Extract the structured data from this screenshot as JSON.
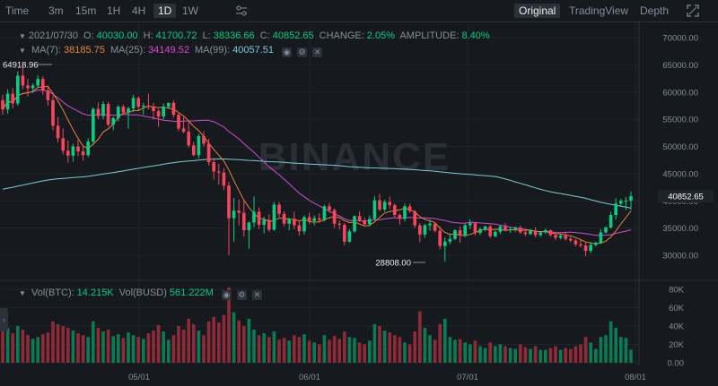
{
  "toolbar": {
    "intervals": [
      {
        "label": "Time",
        "active": false
      },
      {
        "label": "3m",
        "active": false
      },
      {
        "label": "15m",
        "active": false
      },
      {
        "label": "1H",
        "active": false
      },
      {
        "label": "4H",
        "active": false
      },
      {
        "label": "1D",
        "active": true
      },
      {
        "label": "1W",
        "active": false
      }
    ],
    "indicator_icon": "sliders-icon",
    "views": [
      {
        "label": "Original",
        "active": true
      },
      {
        "label": "TradingView",
        "active": false
      },
      {
        "label": "Depth",
        "active": false
      }
    ],
    "fullscreen_icon": "expand-icon"
  },
  "ohlc": {
    "date": "2021/07/30",
    "o_label": "O:",
    "o": "40030.00",
    "h_label": "H:",
    "h": "41700.72",
    "l_label": "L:",
    "l": "38336.66",
    "c_label": "C:",
    "c": "40852.65",
    "change_label": "CHANGE:",
    "change": "2.05%",
    "amplitude_label": "AMPLITUDE:",
    "amplitude": "8.40%"
  },
  "ma": {
    "ma7_label": "MA(7):",
    "ma7": "38185.75",
    "ma25_label": "MA(25):",
    "ma25": "34149.52",
    "ma99_label": "MA(99):",
    "ma99": "40057.51"
  },
  "volume": {
    "btc_label": "Vol(BTC):",
    "btc": "14.215K",
    "busd_label": "Vol(BUSD)",
    "busd": "561.222M"
  },
  "watermark": "BINANCE",
  "annotations": {
    "high": "64918.96",
    "low": "28808.00"
  },
  "last_price": "40852.65",
  "price_axis": [
    "70000.00",
    "65000.00",
    "60000.00",
    "55000.00",
    "50000.00",
    "45000.00",
    "40000.00",
    "35000.00",
    "30000.00"
  ],
  "volume_axis": [
    "80K",
    "60K",
    "40K",
    "20K",
    "0.00"
  ],
  "time_axis": [
    "05/01",
    "06/01",
    "07/01",
    "08/01"
  ],
  "colors": {
    "up": "#0ecb81",
    "down": "#f6465d",
    "ma7": "#f0b90b",
    "ma25": "#d14cd1",
    "ma99": "#7ecad6",
    "bg": "#161a1e",
    "grid": "#1f242a"
  },
  "chart_data": {
    "type": "candlestick",
    "price_range": [
      27000,
      72000
    ],
    "volume_range": [
      0,
      85000
    ],
    "candles": [
      [
        58500,
        59500,
        55800,
        56800,
        35000
      ],
      [
        56800,
        60500,
        56000,
        59700,
        38000
      ],
      [
        59700,
        60700,
        57000,
        57900,
        32000
      ],
      [
        57900,
        63800,
        57500,
        63000,
        40000
      ],
      [
        63000,
        64919,
        60500,
        61200,
        36000
      ],
      [
        61200,
        62400,
        59200,
        60700,
        30000
      ],
      [
        60700,
        61600,
        59800,
        61200,
        26000
      ],
      [
        61200,
        63100,
        60700,
        62400,
        28000
      ],
      [
        62400,
        62900,
        59500,
        60300,
        31000
      ],
      [
        60300,
        61200,
        57500,
        58500,
        33000
      ],
      [
        58500,
        59400,
        53000,
        53800,
        45000
      ],
      [
        53800,
        55400,
        50700,
        51500,
        42000
      ],
      [
        51500,
        53300,
        48500,
        49200,
        40000
      ],
      [
        49200,
        51100,
        47000,
        48300,
        38000
      ],
      [
        48300,
        50500,
        47200,
        50000,
        35000
      ],
      [
        50000,
        51200,
        48200,
        49100,
        32000
      ],
      [
        49100,
        49900,
        47400,
        48400,
        30000
      ],
      [
        48400,
        51500,
        48000,
        50900,
        28000
      ],
      [
        50900,
        57200,
        50300,
        56900,
        45000
      ],
      [
        56900,
        58100,
        55000,
        55600,
        38000
      ],
      [
        55600,
        58300,
        55000,
        57800,
        34000
      ],
      [
        57800,
        58200,
        53700,
        54000,
        36000
      ],
      [
        54000,
        55500,
        53000,
        55200,
        29000
      ],
      [
        55200,
        57600,
        54600,
        57300,
        31000
      ],
      [
        57300,
        57700,
        55800,
        56300,
        27000
      ],
      [
        56300,
        57300,
        53300,
        57000,
        33000
      ],
      [
        57000,
        59500,
        56300,
        58900,
        30000
      ],
      [
        58900,
        59200,
        56500,
        57300,
        28000
      ],
      [
        57300,
        58000,
        55800,
        57500,
        26000
      ],
      [
        57500,
        59700,
        56800,
        57300,
        32000
      ],
      [
        57300,
        58000,
        54900,
        56500,
        35000
      ],
      [
        56500,
        56900,
        53600,
        55500,
        41000
      ],
      [
        55500,
        57900,
        55000,
        57300,
        34000
      ],
      [
        57300,
        58100,
        56900,
        58000,
        25000
      ],
      [
        58000,
        58500,
        55300,
        55800,
        30000
      ],
      [
        55800,
        56300,
        52800,
        53300,
        40000
      ],
      [
        53300,
        55400,
        52400,
        52700,
        36000
      ],
      [
        52700,
        54500,
        49800,
        50200,
        48000
      ],
      [
        50200,
        50900,
        48200,
        48400,
        42000
      ],
      [
        48400,
        52300,
        47800,
        51900,
        35000
      ],
      [
        51900,
        52800,
        50000,
        50500,
        30000
      ],
      [
        50500,
        51400,
        46500,
        47100,
        45000
      ],
      [
        47100,
        47900,
        43900,
        45400,
        50000
      ],
      [
        45400,
        46800,
        43000,
        45200,
        44000
      ],
      [
        45200,
        46000,
        42000,
        42800,
        52000
      ],
      [
        42800,
        43500,
        30000,
        36800,
        82000
      ],
      [
        36800,
        40500,
        32500,
        38200,
        55000
      ],
      [
        38200,
        40200,
        35500,
        37800,
        46000
      ],
      [
        37800,
        40100,
        33400,
        34600,
        40000
      ],
      [
        34600,
        36200,
        31200,
        36000,
        48000
      ],
      [
        36000,
        40800,
        35200,
        38000,
        36000
      ],
      [
        38000,
        38800,
        34800,
        35600,
        30000
      ],
      [
        35600,
        37100,
        34000,
        36500,
        32000
      ],
      [
        36500,
        37500,
        34300,
        34700,
        28000
      ],
      [
        34700,
        39800,
        34500,
        39300,
        34000
      ],
      [
        39300,
        39800,
        37000,
        37600,
        25000
      ],
      [
        37600,
        38100,
        35300,
        35800,
        27000
      ],
      [
        35800,
        36900,
        34600,
        36700,
        24000
      ],
      [
        36700,
        38000,
        34800,
        35500,
        30000
      ],
      [
        35500,
        36300,
        33600,
        34400,
        28000
      ],
      [
        34400,
        37300,
        33800,
        37000,
        31000
      ],
      [
        37000,
        37800,
        35700,
        36300,
        24000
      ],
      [
        36300,
        37300,
        35500,
        36800,
        22000
      ],
      [
        36800,
        37700,
        35900,
        36500,
        20000
      ],
      [
        36500,
        39200,
        36200,
        39000,
        30000
      ],
      [
        39000,
        39600,
        37800,
        38300,
        25000
      ],
      [
        38300,
        38600,
        35000,
        35800,
        29000
      ],
      [
        35800,
        36400,
        34700,
        35600,
        26000
      ],
      [
        35600,
        35900,
        31800,
        32500,
        34000
      ],
      [
        32500,
        34800,
        32300,
        34400,
        28000
      ],
      [
        34400,
        37300,
        34100,
        37200,
        27000
      ],
      [
        37200,
        38100,
        36100,
        36400,
        22000
      ],
      [
        36400,
        36900,
        35300,
        35700,
        20000
      ],
      [
        35700,
        37300,
        35300,
        36700,
        24000
      ],
      [
        36700,
        40900,
        36500,
        40100,
        42000
      ],
      [
        40100,
        41300,
        38000,
        38400,
        40000
      ],
      [
        38400,
        40200,
        38000,
        39800,
        35000
      ],
      [
        39800,
        40800,
        38500,
        39200,
        33000
      ],
      [
        39200,
        39500,
        37000,
        37400,
        30000
      ],
      [
        37400,
        37700,
        35600,
        36700,
        28000
      ],
      [
        36700,
        39500,
        36200,
        39000,
        22000
      ],
      [
        39000,
        39500,
        37800,
        38100,
        20000
      ],
      [
        38100,
        38300,
        35000,
        35500,
        34000
      ],
      [
        35500,
        35900,
        32400,
        33800,
        56000
      ],
      [
        33800,
        35800,
        33200,
        35500,
        38000
      ],
      [
        35500,
        36600,
        34500,
        35800,
        30000
      ],
      [
        35800,
        36100,
        34200,
        34500,
        25000
      ],
      [
        34500,
        35300,
        31100,
        31700,
        42000
      ],
      [
        31700,
        33300,
        28808,
        32500,
        48000
      ],
      [
        32500,
        33900,
        32000,
        33000,
        28000
      ],
      [
        33000,
        34800,
        32800,
        34600,
        25000
      ],
      [
        34600,
        35300,
        32300,
        33600,
        26000
      ],
      [
        33600,
        35800,
        33300,
        35500,
        22000
      ],
      [
        35500,
        36600,
        34800,
        35900,
        20000
      ],
      [
        35900,
        36000,
        33600,
        34100,
        24000
      ],
      [
        34100,
        35100,
        33700,
        34800,
        18000
      ],
      [
        34800,
        35400,
        34400,
        35300,
        16000
      ],
      [
        35300,
        35600,
        33200,
        33500,
        22000
      ],
      [
        33500,
        34600,
        33300,
        34300,
        18000
      ],
      [
        34300,
        35500,
        33900,
        35300,
        20000
      ],
      [
        35300,
        35900,
        34400,
        34600,
        18000
      ],
      [
        34600,
        35200,
        34100,
        34800,
        16000
      ],
      [
        34800,
        35300,
        34300,
        35100,
        15000
      ],
      [
        35100,
        35400,
        33900,
        34200,
        20000
      ],
      [
        34200,
        34600,
        33500,
        33900,
        17000
      ],
      [
        33900,
        34800,
        33700,
        34500,
        15000
      ],
      [
        34500,
        35100,
        33300,
        33700,
        18000
      ],
      [
        33700,
        34400,
        33400,
        34200,
        14000
      ],
      [
        34200,
        34900,
        33900,
        34600,
        14000
      ],
      [
        34600,
        34700,
        33400,
        33700,
        16000
      ],
      [
        33700,
        34100,
        32800,
        33200,
        18000
      ],
      [
        33200,
        33800,
        32900,
        33600,
        14000
      ],
      [
        33600,
        34200,
        32700,
        33000,
        16000
      ],
      [
        33000,
        33500,
        32400,
        32700,
        15000
      ],
      [
        32700,
        33000,
        31600,
        32000,
        18000
      ],
      [
        32000,
        32800,
        31400,
        31800,
        20000
      ],
      [
        31800,
        32500,
        29800,
        30800,
        28000
      ],
      [
        30800,
        32400,
        30400,
        31900,
        22000
      ],
      [
        31900,
        32500,
        31600,
        32300,
        15000
      ],
      [
        32300,
        34800,
        32100,
        34200,
        28000
      ],
      [
        34200,
        35300,
        33900,
        35100,
        30000
      ],
      [
        35100,
        38000,
        34900,
        37400,
        45000
      ],
      [
        37400,
        40500,
        36600,
        39500,
        38000
      ],
      [
        39500,
        40400,
        38900,
        40000,
        28000
      ],
      [
        40000,
        40700,
        38300,
        40030,
        27000
      ],
      [
        40030,
        41700,
        38337,
        40852,
        14215
      ]
    ]
  }
}
